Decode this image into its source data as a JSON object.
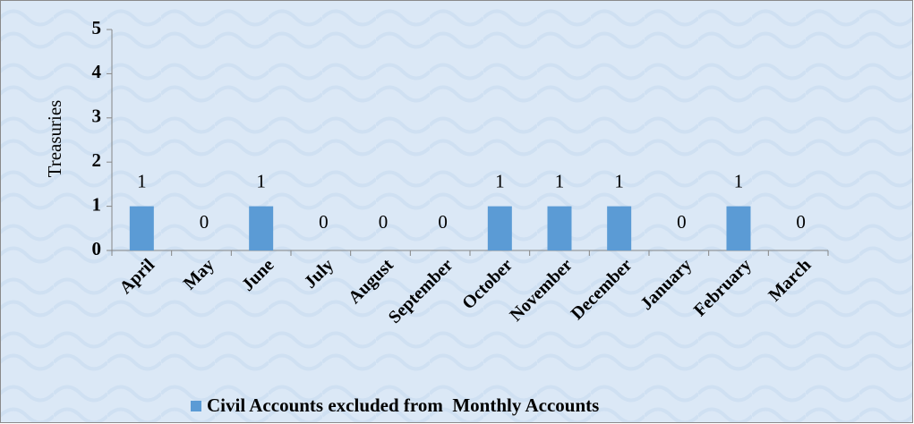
{
  "chart_data": {
    "type": "bar",
    "y_label": "Treasuries",
    "categories": [
      "April",
      "May",
      "June",
      "July",
      "August",
      "September",
      "October",
      "November",
      "December",
      "January",
      "February",
      "March"
    ],
    "series": [
      {
        "name": "Civil Accounts excluded from  Monthly Accounts",
        "color": "#5b9bd5",
        "values": [
          1,
          0,
          1,
          0,
          0,
          0,
          1,
          1,
          1,
          0,
          1,
          0
        ]
      }
    ],
    "ylim": [
      0,
      5
    ],
    "yticks": [
      0,
      1,
      2,
      3,
      4,
      5
    ],
    "grid": false,
    "legend": "bottom"
  }
}
